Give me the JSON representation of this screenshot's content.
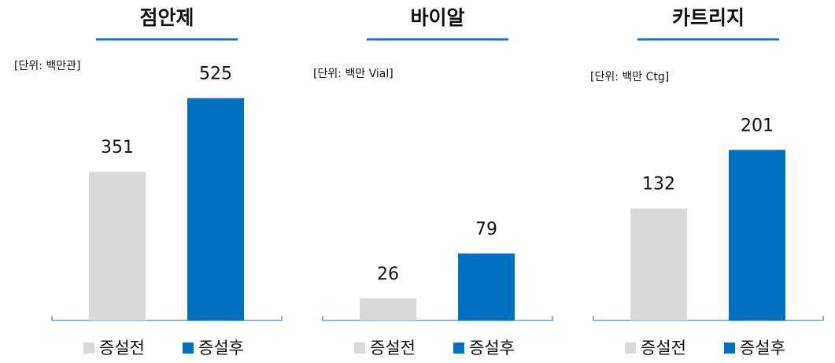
{
  "chart_data": [
    {
      "type": "bar",
      "title": "점안제",
      "subtitle": "[단위: 백만관]",
      "categories": [
        "증설전",
        "증설후"
      ],
      "values": [
        351,
        525
      ],
      "colors": [
        "#d9d9d9",
        "#0070c0"
      ]
    },
    {
      "type": "bar",
      "title": "바이알",
      "subtitle": "[단위: 백만 Vial]",
      "categories": [
        "증설전",
        "증설후"
      ],
      "values": [
        26,
        79
      ],
      "colors": [
        "#d9d9d9",
        "#0070c0"
      ]
    },
    {
      "type": "bar",
      "title": "카트리지",
      "subtitle": "[단위: 백만 Ctg]",
      "categories": [
        "증설전",
        "증설후"
      ],
      "values": [
        132,
        201
      ],
      "colors": [
        "#d9d9d9",
        "#0070c0"
      ]
    }
  ]
}
